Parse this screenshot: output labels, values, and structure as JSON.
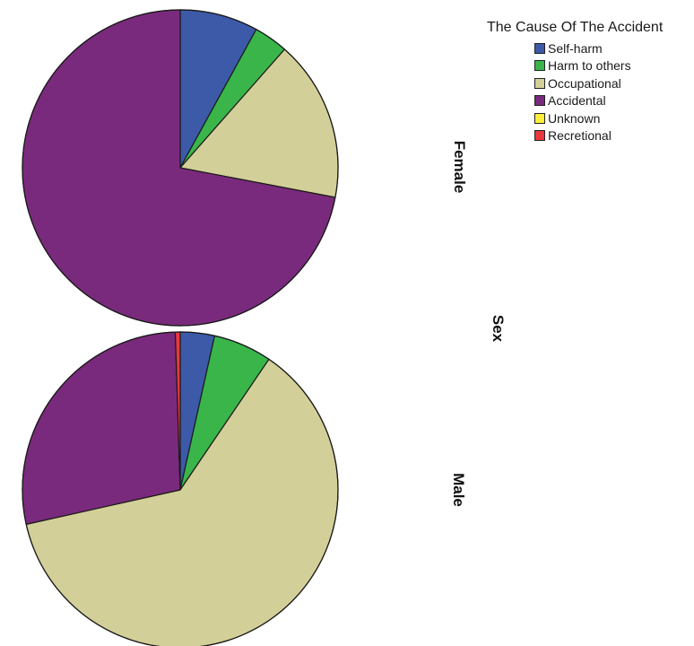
{
  "chart_data": {
    "type": "pie",
    "legend_title": "The Cause Of The Accident",
    "legend_position": "top-right",
    "facet_label": "Sex",
    "categories": [
      "Self-harm",
      "Harm to others",
      "Occupational",
      "Accidental",
      "Unknown",
      "Recretional"
    ],
    "colors": [
      "#3c5aa8",
      "#39b54a",
      "#d3cf98",
      "#7a2a7c",
      "#ffef3a",
      "#e8383d"
    ],
    "pies": [
      {
        "panel": "Female",
        "values": [
          8.0,
          3.5,
          16.5,
          72.0,
          0,
          0
        ]
      },
      {
        "panel": "Male",
        "values": [
          3.5,
          6.0,
          62.0,
          28.0,
          0,
          0.5
        ]
      }
    ]
  }
}
